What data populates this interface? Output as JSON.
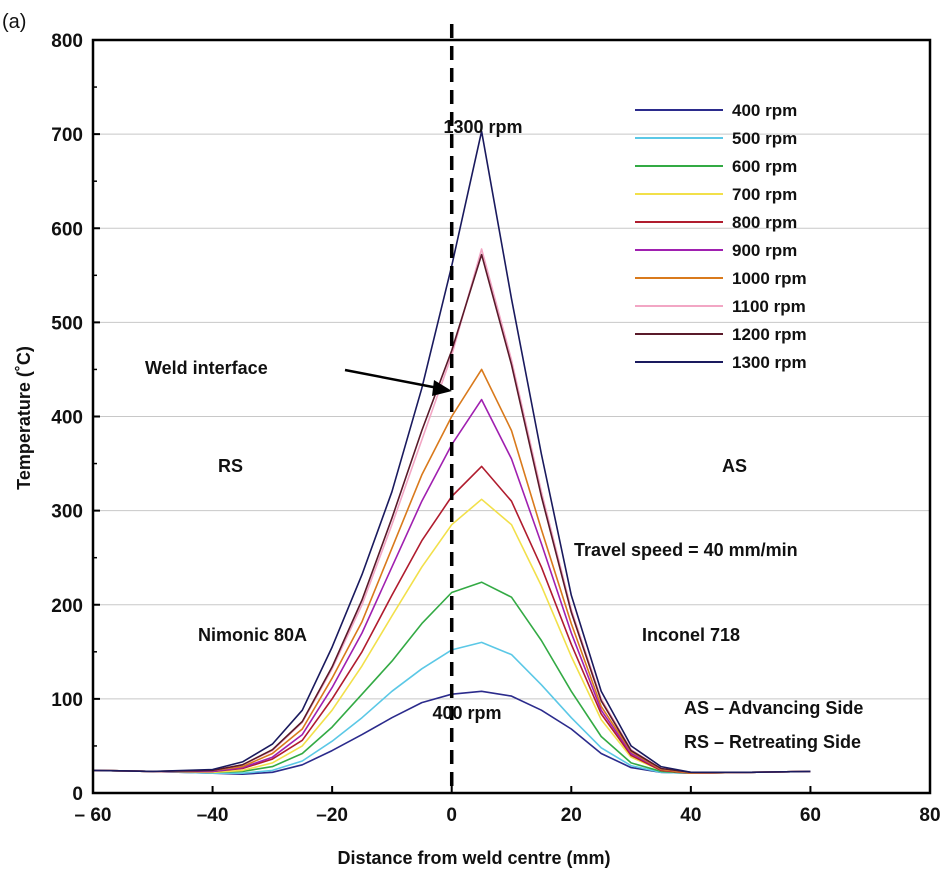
{
  "chart_data": {
    "type": "line",
    "panel_label": "(a)",
    "xlabel": "Distance from weld  centre (mm)",
    "ylabel": "Temperature (˚C)",
    "xlim": [
      -60,
      80
    ],
    "ylim": [
      0,
      800
    ],
    "xticks": [
      -60,
      -40,
      -20,
      0,
      20,
      40,
      60,
      80
    ],
    "xtick_labels": [
      "– 60",
      "–40",
      "–20",
      "0",
      "20",
      "40",
      "60",
      "80"
    ],
    "yticks": [
      0,
      100,
      200,
      300,
      400,
      500,
      600,
      700,
      800
    ],
    "grid": "horizontal",
    "x": [
      -60,
      -50,
      -40,
      -35,
      -30,
      -25,
      -20,
      -15,
      -10,
      -5,
      0,
      5,
      10,
      15,
      20,
      25,
      30,
      35,
      40,
      50,
      60
    ],
    "series": [
      {
        "name": "400 rpm",
        "color": "#2b2b8c",
        "values": [
          24,
          23,
          21,
          20,
          22,
          30,
          45,
          62,
          80,
          96,
          105,
          108,
          103,
          88,
          68,
          42,
          27,
          22,
          21,
          22,
          23
        ]
      },
      {
        "name": "500 rpm",
        "color": "#5bc8e6",
        "values": [
          24,
          23,
          21,
          21,
          24,
          34,
          55,
          80,
          108,
          132,
          152,
          160,
          147,
          115,
          80,
          48,
          29,
          22,
          21,
          22,
          23
        ]
      },
      {
        "name": "600 rpm",
        "color": "#33aa44",
        "values": [
          24,
          23,
          22,
          23,
          28,
          42,
          70,
          105,
          140,
          180,
          213,
          224,
          208,
          162,
          108,
          60,
          32,
          23,
          21,
          22,
          23
        ]
      },
      {
        "name": "700 rpm",
        "color": "#f2e04a",
        "values": [
          24,
          23,
          22,
          24,
          32,
          50,
          88,
          135,
          188,
          240,
          285,
          312,
          285,
          220,
          145,
          78,
          38,
          24,
          21,
          22,
          23
        ]
      },
      {
        "name": "800 rpm",
        "color": "#b01c2e",
        "values": [
          24,
          23,
          23,
          26,
          36,
          56,
          100,
          150,
          210,
          268,
          315,
          347,
          310,
          240,
          158,
          84,
          40,
          24,
          21,
          22,
          23
        ]
      },
      {
        "name": "900 rpm",
        "color": "#a020b0",
        "values": [
          24,
          23,
          23,
          27,
          38,
          62,
          112,
          170,
          240,
          310,
          370,
          418,
          355,
          265,
          170,
          88,
          42,
          25,
          21,
          22,
          23
        ]
      },
      {
        "name": "1000 rpm",
        "color": "#d97a1c",
        "values": [
          24,
          23,
          24,
          28,
          42,
          68,
          122,
          182,
          260,
          338,
          400,
          450,
          385,
          280,
          180,
          92,
          44,
          25,
          21,
          22,
          23
        ]
      },
      {
        "name": "1100 rpm",
        "color": "#f2a6c4",
        "values": [
          24,
          23,
          24,
          30,
          45,
          75,
          132,
          200,
          285,
          375,
          465,
          578,
          460,
          320,
          195,
          100,
          46,
          26,
          22,
          22,
          23
        ]
      },
      {
        "name": "1200 rpm",
        "color": "#5a1a2a",
        "values": [
          24,
          23,
          24,
          30,
          46,
          76,
          134,
          205,
          292,
          385,
          470,
          572,
          455,
          315,
          192,
          98,
          45,
          26,
          22,
          22,
          23
        ]
      },
      {
        "name": "1300 rpm",
        "color": "#1a1a5e",
        "values": [
          24,
          23,
          25,
          33,
          52,
          88,
          155,
          232,
          320,
          430,
          560,
          703,
          525,
          360,
          210,
          108,
          50,
          28,
          22,
          22,
          23
        ]
      }
    ],
    "annotations": {
      "top_label": "1300 rpm",
      "bottom_label": "400 rpm",
      "weld_interface": "Weld interface",
      "rs": "RS",
      "as": "AS",
      "travel_speed": "Travel speed = 40 mm/min",
      "left_material": "Nimonic 80A",
      "right_material": "Inconel 718",
      "as_def": "AS – Advancing Side",
      "rs_def": "RS – Retreating Side"
    },
    "legend_position": "top-right"
  }
}
